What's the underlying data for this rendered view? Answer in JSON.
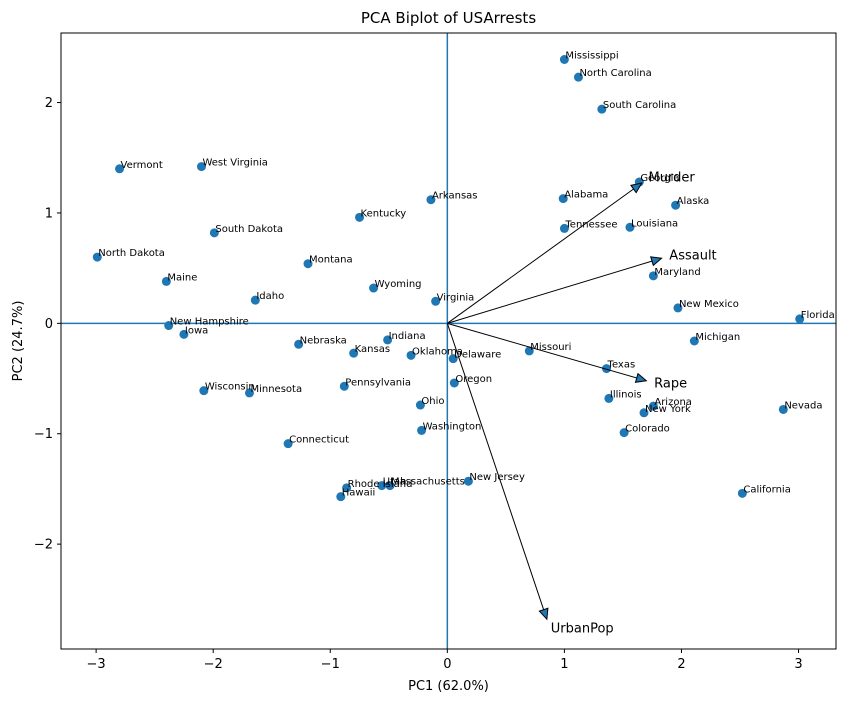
{
  "chart_data": {
    "type": "scatter",
    "title": "PCA Biplot of USArrests",
    "xlabel": "PC1 (62.0%)",
    "ylabel": "PC2 (24.7%)",
    "xlim": [
      -3.3,
      3.32
    ],
    "ylim": [
      -2.95,
      2.63
    ],
    "xticks": [
      -3,
      -2,
      -1,
      0,
      1,
      2,
      3
    ],
    "yticks": [
      -2,
      -1,
      0,
      1,
      2
    ],
    "grid": false,
    "point_color": "#1f77b4",
    "reference_line_color": "#1f77b4",
    "points": [
      {
        "label": "Alabama",
        "x": 0.99,
        "y": 1.13
      },
      {
        "label": "Alaska",
        "x": 1.95,
        "y": 1.07
      },
      {
        "label": "Arizona",
        "x": 1.76,
        "y": -0.75
      },
      {
        "label": "Arkansas",
        "x": -0.14,
        "y": 1.12
      },
      {
        "label": "California",
        "x": 2.52,
        "y": -1.54
      },
      {
        "label": "Colorado",
        "x": 1.51,
        "y": -0.99
      },
      {
        "label": "Connecticut",
        "x": -1.36,
        "y": -1.09
      },
      {
        "label": "Delaware",
        "x": 0.05,
        "y": -0.32
      },
      {
        "label": "Florida",
        "x": 3.01,
        "y": 0.04
      },
      {
        "label": "Georgia",
        "x": 1.64,
        "y": 1.28
      },
      {
        "label": "Hawaii",
        "x": -0.91,
        "y": -1.57
      },
      {
        "label": "Idaho",
        "x": -1.64,
        "y": 0.21
      },
      {
        "label": "Illinois",
        "x": 1.38,
        "y": -0.68
      },
      {
        "label": "Indiana",
        "x": -0.51,
        "y": -0.15
      },
      {
        "label": "Iowa",
        "x": -2.25,
        "y": -0.1
      },
      {
        "label": "Kansas",
        "x": -0.8,
        "y": -0.27
      },
      {
        "label": "Kentucky",
        "x": -0.75,
        "y": 0.96
      },
      {
        "label": "Louisiana",
        "x": 1.56,
        "y": 0.87
      },
      {
        "label": "Maine",
        "x": -2.4,
        "y": 0.38
      },
      {
        "label": "Maryland",
        "x": 1.76,
        "y": 0.43
      },
      {
        "label": "Massachusetts",
        "x": -0.49,
        "y": -1.47
      },
      {
        "label": "Michigan",
        "x": 2.11,
        "y": -0.16
      },
      {
        "label": "Minnesota",
        "x": -1.69,
        "y": -0.63
      },
      {
        "label": "Mississippi",
        "x": 1.0,
        "y": 2.39
      },
      {
        "label": "Missouri",
        "x": 0.7,
        "y": -0.25
      },
      {
        "label": "Montana",
        "x": -1.19,
        "y": 0.54
      },
      {
        "label": "Nebraska",
        "x": -1.27,
        "y": -0.19
      },
      {
        "label": "Nevada",
        "x": 2.87,
        "y": -0.78
      },
      {
        "label": "New Hampshire",
        "x": -2.38,
        "y": -0.02
      },
      {
        "label": "New Jersey",
        "x": 0.18,
        "y": -1.43
      },
      {
        "label": "New Mexico",
        "x": 1.97,
        "y": 0.14
      },
      {
        "label": "New York",
        "x": 1.68,
        "y": -0.81
      },
      {
        "label": "North Carolina",
        "x": 1.12,
        "y": 2.23
      },
      {
        "label": "North Dakota",
        "x": -2.99,
        "y": 0.6
      },
      {
        "label": "Ohio",
        "x": -0.23,
        "y": -0.74
      },
      {
        "label": "Oklahoma",
        "x": -0.31,
        "y": -0.29
      },
      {
        "label": "Oregon",
        "x": 0.06,
        "y": -0.54
      },
      {
        "label": "Pennsylvania",
        "x": -0.88,
        "y": -0.57
      },
      {
        "label": "Rhode Island",
        "x": -0.86,
        "y": -1.49
      },
      {
        "label": "South Carolina",
        "x": 1.32,
        "y": 1.94
      },
      {
        "label": "South Dakota",
        "x": -1.99,
        "y": 0.82
      },
      {
        "label": "Tennessee",
        "x": 1.0,
        "y": 0.86
      },
      {
        "label": "Texas",
        "x": 1.36,
        "y": -0.41
      },
      {
        "label": "Utah",
        "x": -0.56,
        "y": -1.47
      },
      {
        "label": "Vermont",
        "x": -2.8,
        "y": 1.4
      },
      {
        "label": "Virginia",
        "x": -0.1,
        "y": 0.2
      },
      {
        "label": "Washington",
        "x": -0.22,
        "y": -0.97
      },
      {
        "label": "West Virginia",
        "x": -2.1,
        "y": 1.42
      },
      {
        "label": "Wisconsin",
        "x": -2.08,
        "y": -0.61
      },
      {
        "label": "Wyoming",
        "x": -0.63,
        "y": 0.32
      }
    ],
    "loadings": [
      {
        "label": "Murder",
        "x": 1.66,
        "y": 1.27
      },
      {
        "label": "Assault",
        "x": 1.83,
        "y": 0.59
      },
      {
        "label": "Rape",
        "x": 1.7,
        "y": -0.52
      },
      {
        "label": "UrbanPop",
        "x": 0.85,
        "y": -2.68
      }
    ]
  }
}
